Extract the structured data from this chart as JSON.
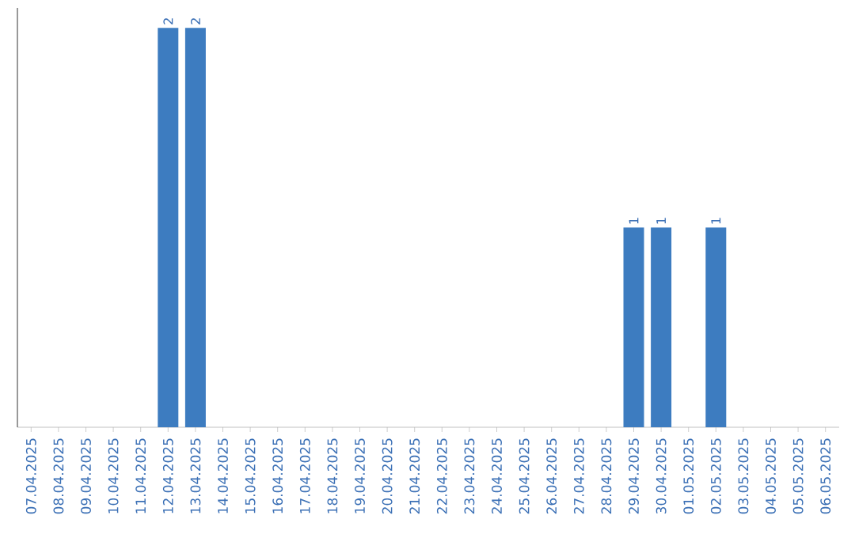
{
  "chart_data": {
    "type": "bar",
    "categories": [
      "07.04.2025",
      "08.04.2025",
      "09.04.2025",
      "10.04.2025",
      "11.04.2025",
      "12.04.2025",
      "13.04.2025",
      "14.04.2025",
      "15.04.2025",
      "16.04.2025",
      "17.04.2025",
      "18.04.2025",
      "19.04.2025",
      "20.04.2025",
      "21.04.2025",
      "22.04.2025",
      "23.04.2025",
      "24.04.2025",
      "25.04.2025",
      "26.04.2025",
      "27.04.2025",
      "28.04.2025",
      "29.04.2025",
      "30.04.2025",
      "01.05.2025",
      "02.05.2025",
      "03.05.2025",
      "04.05.2025",
      "05.05.2025",
      "06.05.2025"
    ],
    "values": [
      0,
      0,
      0,
      0,
      0,
      2,
      2,
      0,
      0,
      0,
      0,
      0,
      0,
      0,
      0,
      0,
      0,
      0,
      0,
      0,
      0,
      0,
      1,
      1,
      0,
      1,
      0,
      0,
      0,
      0
    ],
    "value_labels": [
      null,
      null,
      null,
      null,
      null,
      "2",
      "2",
      null,
      null,
      null,
      null,
      null,
      null,
      null,
      null,
      null,
      null,
      null,
      null,
      null,
      null,
      null,
      "1",
      "1",
      null,
      "1",
      null,
      null,
      null,
      null
    ],
    "color": "#3d7cc0",
    "ylim": [
      0,
      2.1
    ]
  }
}
